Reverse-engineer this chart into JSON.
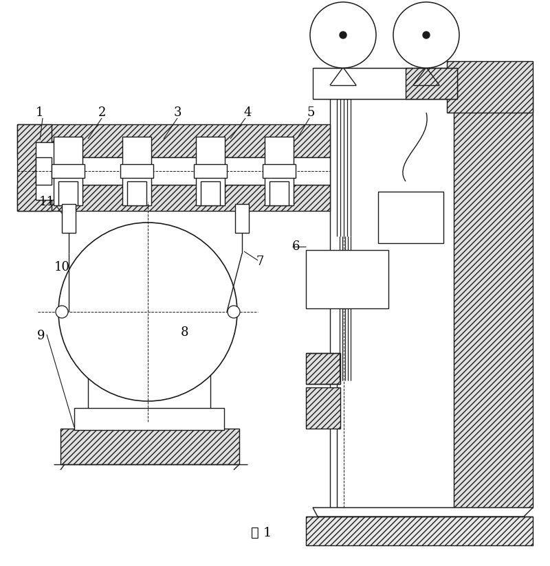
{
  "bg_color": "#ffffff",
  "line_color": "#1a1a1a",
  "caption": "图 1",
  "figsize": [
    8.0,
    8.24
  ],
  "dpi": 100
}
